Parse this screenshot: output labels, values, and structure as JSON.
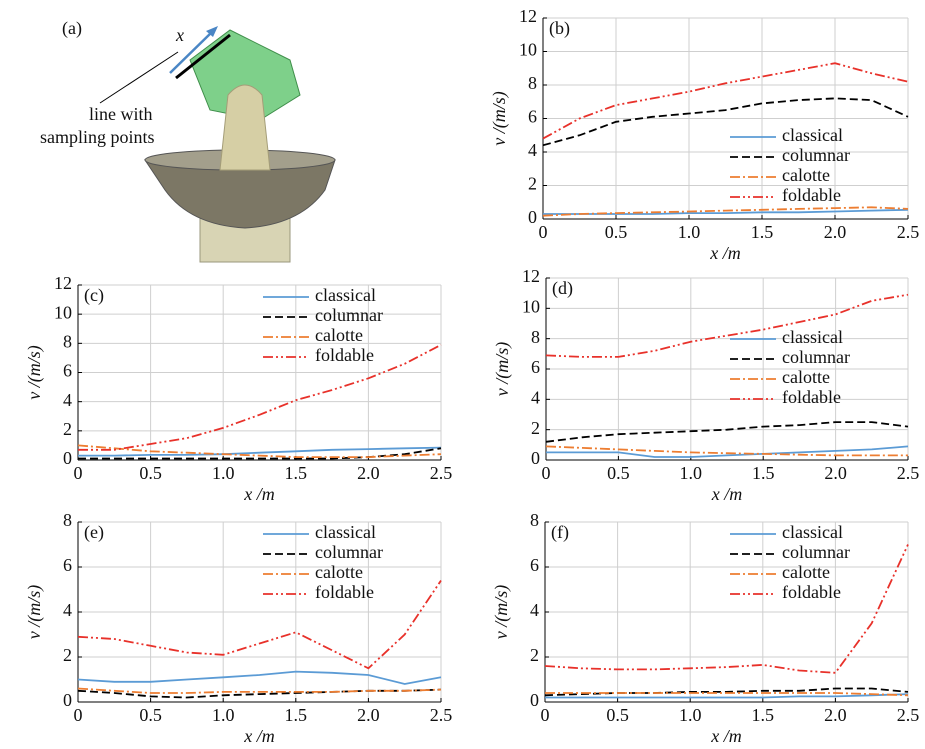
{
  "illustration": {
    "label": "(a)",
    "axis_label": "x",
    "caption": [
      "line with",
      "sampling points"
    ]
  },
  "chart_data": [
    {
      "type": "line",
      "panel": "(b)",
      "xlabel": "x /m",
      "ylabel": "v /(m/s)",
      "grid": true,
      "legend": "lower right",
      "xlim": [
        0,
        2.5
      ],
      "xticks": [
        0,
        0.5,
        {
          "value": 1,
          "label": "1.0"
        },
        1.5,
        {
          "value": 2,
          "label": "2.0"
        },
        2.5
      ],
      "ylim": [
        0,
        12
      ],
      "yticks": [
        0,
        2,
        4,
        6,
        8,
        10,
        12
      ],
      "x": [
        0,
        0.25,
        0.5,
        0.75,
        1,
        1.25,
        1.5,
        1.75,
        2,
        2.25,
        2.5
      ],
      "series": [
        {
          "name": "classical",
          "color": "#5b9bd5",
          "style": "solid",
          "values": [
            0.3,
            0.3,
            0.3,
            0.3,
            0.35,
            0.35,
            0.4,
            0.4,
            0.45,
            0.5,
            0.55
          ]
        },
        {
          "name": "columnar",
          "color": "#000000",
          "style": "dashed",
          "values": [
            4.4,
            5.0,
            5.8,
            6.1,
            6.3,
            6.5,
            6.9,
            7.1,
            7.2,
            7.1,
            6.1
          ]
        },
        {
          "name": "calotte",
          "color": "#ed7d31",
          "style": "dashdot",
          "values": [
            0.2,
            0.3,
            0.35,
            0.4,
            0.45,
            0.5,
            0.55,
            0.6,
            0.65,
            0.7,
            0.6
          ]
        },
        {
          "name": "foldable",
          "color": "#e8312a",
          "style": "dashdotdot",
          "values": [
            4.8,
            6.0,
            6.8,
            7.2,
            7.6,
            8.1,
            8.5,
            8.9,
            9.3,
            8.7,
            8.2
          ]
        }
      ]
    },
    {
      "type": "line",
      "panel": "(c)",
      "xlabel": "x /m",
      "ylabel": "v /(m/s)",
      "grid": true,
      "legend": "upper right",
      "xlim": [
        0,
        2.5
      ],
      "xticks": [
        0,
        0.5,
        {
          "value": 1,
          "label": "1.0"
        },
        1.5,
        {
          "value": 2,
          "label": "2.0"
        },
        2.5
      ],
      "ylim": [
        0,
        12
      ],
      "yticks": [
        0,
        2,
        4,
        6,
        8,
        10,
        12
      ],
      "x": [
        0,
        0.25,
        0.5,
        0.75,
        1,
        1.25,
        1.5,
        1.75,
        2,
        2.25,
        2.5
      ],
      "series": [
        {
          "name": "classical",
          "color": "#5b9bd5",
          "style": "solid",
          "values": [
            0.3,
            0.3,
            0.35,
            0.35,
            0.4,
            0.5,
            0.6,
            0.7,
            0.75,
            0.8,
            0.85
          ]
        },
        {
          "name": "columnar",
          "color": "#000000",
          "style": "dashed",
          "values": [
            0.1,
            0.1,
            0.1,
            0.1,
            0.1,
            0.1,
            0.1,
            0.1,
            0.2,
            0.4,
            0.8
          ]
        },
        {
          "name": "calotte",
          "color": "#ed7d31",
          "style": "dashdot",
          "values": [
            1.0,
            0.8,
            0.6,
            0.5,
            0.4,
            0.3,
            0.2,
            0.2,
            0.2,
            0.3,
            0.4
          ]
        },
        {
          "name": "foldable",
          "color": "#e8312a",
          "style": "dashdotdot",
          "values": [
            0.7,
            0.7,
            1.1,
            1.5,
            2.2,
            3.1,
            4.1,
            4.8,
            5.6,
            6.6,
            7.9
          ]
        }
      ]
    },
    {
      "type": "line",
      "panel": "(d)",
      "xlabel": "x /m",
      "ylabel": "v /(m/s)",
      "grid": true,
      "legend": "center right",
      "xlim": [
        0,
        2.5
      ],
      "xticks": [
        0,
        0.5,
        {
          "value": 1,
          "label": "1.0"
        },
        1.5,
        {
          "value": 2,
          "label": "2.0"
        },
        2.5
      ],
      "ylim": [
        0,
        12
      ],
      "yticks": [
        0,
        2,
        4,
        6,
        8,
        10,
        12
      ],
      "x": [
        0,
        0.25,
        0.5,
        0.75,
        1,
        1.25,
        1.5,
        1.75,
        2,
        2.25,
        2.5
      ],
      "series": [
        {
          "name": "classical",
          "color": "#5b9bd5",
          "style": "solid",
          "values": [
            0.5,
            0.5,
            0.5,
            0.2,
            0.2,
            0.3,
            0.4,
            0.5,
            0.6,
            0.7,
            0.9
          ]
        },
        {
          "name": "columnar",
          "color": "#000000",
          "style": "dashed",
          "values": [
            1.2,
            1.5,
            1.7,
            1.8,
            1.9,
            2.0,
            2.2,
            2.3,
            2.5,
            2.5,
            2.2
          ]
        },
        {
          "name": "calotte",
          "color": "#ed7d31",
          "style": "dashdot",
          "values": [
            0.9,
            0.8,
            0.7,
            0.6,
            0.5,
            0.45,
            0.4,
            0.35,
            0.3,
            0.3,
            0.3
          ]
        },
        {
          "name": "foldable",
          "color": "#e8312a",
          "style": "dashdotdot",
          "values": [
            6.9,
            6.8,
            6.8,
            7.2,
            7.8,
            8.2,
            8.6,
            9.1,
            9.6,
            10.5,
            10.9
          ]
        }
      ]
    },
    {
      "type": "line",
      "panel": "(e)",
      "xlabel": "x /m",
      "ylabel": "v /(m/s)",
      "grid": true,
      "legend": "upper right",
      "xlim": [
        0,
        2.5
      ],
      "xticks": [
        0,
        0.5,
        {
          "value": 1,
          "label": "1.0"
        },
        1.5,
        {
          "value": 2,
          "label": "2.0"
        },
        2.5
      ],
      "ylim": [
        0,
        8
      ],
      "yticks": [
        0,
        2,
        4,
        6,
        8
      ],
      "x": [
        0,
        0.25,
        0.5,
        0.75,
        1,
        1.25,
        1.5,
        1.75,
        2,
        2.25,
        2.5
      ],
      "series": [
        {
          "name": "classical",
          "color": "#5b9bd5",
          "style": "solid",
          "values": [
            1.0,
            0.9,
            0.9,
            1.0,
            1.1,
            1.2,
            1.35,
            1.3,
            1.2,
            0.8,
            1.1
          ]
        },
        {
          "name": "columnar",
          "color": "#000000",
          "style": "dashed",
          "values": [
            0.5,
            0.4,
            0.25,
            0.2,
            0.3,
            0.35,
            0.4,
            0.45,
            0.5,
            0.5,
            0.55
          ]
        },
        {
          "name": "calotte",
          "color": "#ed7d31",
          "style": "dashdot",
          "values": [
            0.6,
            0.5,
            0.4,
            0.4,
            0.45,
            0.45,
            0.45,
            0.45,
            0.5,
            0.5,
            0.55
          ]
        },
        {
          "name": "foldable",
          "color": "#e8312a",
          "style": "dashdotdot",
          "values": [
            2.9,
            2.8,
            2.5,
            2.2,
            2.1,
            2.6,
            3.1,
            2.3,
            1.5,
            3.0,
            5.4
          ]
        }
      ]
    },
    {
      "type": "line",
      "panel": "(f)",
      "xlabel": "x /m",
      "ylabel": "v /(m/s)",
      "grid": true,
      "legend": "upper right",
      "xlim": [
        0,
        2.5
      ],
      "xticks": [
        0,
        0.5,
        {
          "value": 1,
          "label": "1.0"
        },
        1.5,
        {
          "value": 2,
          "label": "2.0"
        },
        2.5
      ],
      "ylim": [
        0,
        8
      ],
      "yticks": [
        0,
        2,
        4,
        6,
        8
      ],
      "x": [
        0,
        0.25,
        0.5,
        0.75,
        1,
        1.25,
        1.5,
        1.75,
        2,
        2.25,
        2.5
      ],
      "series": [
        {
          "name": "classical",
          "color": "#5b9bd5",
          "style": "solid",
          "values": [
            0.2,
            0.2,
            0.2,
            0.2,
            0.2,
            0.2,
            0.2,
            0.25,
            0.25,
            0.3,
            0.35
          ]
        },
        {
          "name": "columnar",
          "color": "#000000",
          "style": "dashed",
          "values": [
            0.3,
            0.35,
            0.4,
            0.4,
            0.45,
            0.45,
            0.5,
            0.5,
            0.6,
            0.6,
            0.45
          ]
        },
        {
          "name": "calotte",
          "color": "#ed7d31",
          "style": "dashdot",
          "values": [
            0.4,
            0.4,
            0.4,
            0.4,
            0.4,
            0.4,
            0.4,
            0.4,
            0.4,
            0.35,
            0.3
          ]
        },
        {
          "name": "foldable",
          "color": "#e8312a",
          "style": "dashdotdot",
          "values": [
            1.6,
            1.5,
            1.45,
            1.45,
            1.5,
            1.55,
            1.65,
            1.4,
            1.3,
            3.5,
            7.0
          ]
        }
      ]
    }
  ]
}
